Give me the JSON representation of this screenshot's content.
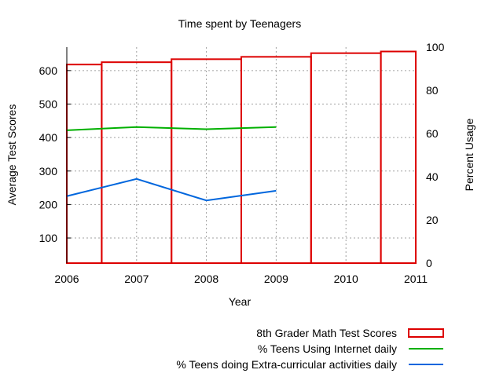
{
  "chart_data": {
    "type": "bar",
    "title": "Time spent by Teenagers",
    "xlabel": "Year",
    "ylabel_left": "Average Test Scores",
    "ylabel_right": "Percent Usage",
    "xlim": [
      2006,
      2011
    ],
    "ylim_left": [
      25,
      670
    ],
    "ylim_right": [
      0,
      100
    ],
    "x_ticks": [
      "2006",
      "2007",
      "2008",
      "2009",
      "2010",
      "2011"
    ],
    "y_ticks_left": [
      "100",
      "200",
      "300",
      "400",
      "500",
      "600"
    ],
    "y_ticks_right": [
      "0",
      "20",
      "40",
      "60",
      "80",
      "100"
    ],
    "grid": true,
    "legend_position": "bottom-right",
    "series": [
      {
        "name": "8th Grader Math Test Scores",
        "type": "bar",
        "axis": "left",
        "color": "#dd0000",
        "bars": [
          {
            "from": 2006.0,
            "to": 2006.5,
            "value": 618
          },
          {
            "from": 2006.5,
            "to": 2007.5,
            "value": 625
          },
          {
            "from": 2007.5,
            "to": 2008.5,
            "value": 634
          },
          {
            "from": 2008.5,
            "to": 2009.5,
            "value": 641
          },
          {
            "from": 2009.5,
            "to": 2010.5,
            "value": 652
          },
          {
            "from": 2010.5,
            "to": 2011.0,
            "value": 657
          }
        ]
      },
      {
        "name": "% Teens Using Internet daily",
        "type": "line",
        "axis": "right",
        "color": "#00b000",
        "points": [
          [
            2006,
            61.5
          ],
          [
            2007,
            63
          ],
          [
            2008,
            62
          ],
          [
            2009,
            63
          ]
        ]
      },
      {
        "name": "% Teens doing Extra-curricular activities daily",
        "type": "line",
        "axis": "right",
        "color": "#0066dd",
        "points": [
          [
            2006,
            31
          ],
          [
            2007,
            39
          ],
          [
            2008,
            29
          ],
          [
            2009,
            33.5
          ]
        ]
      }
    ]
  }
}
